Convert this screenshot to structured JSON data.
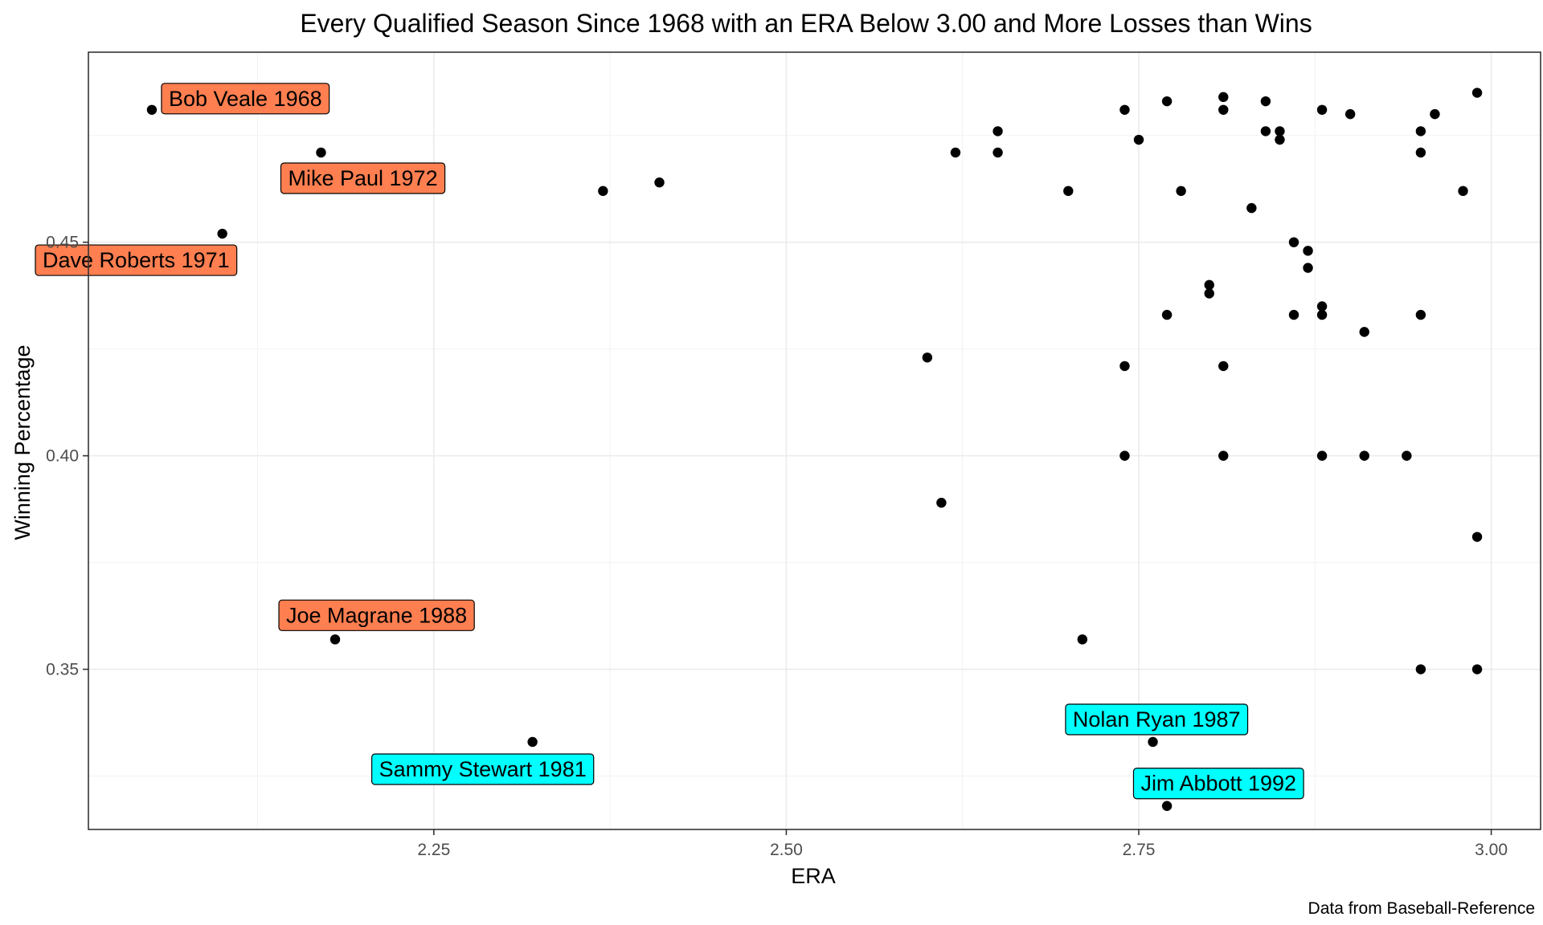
{
  "chart_data": {
    "type": "scatter",
    "title": "Every Qualified Season Since 1968 with an ERA Below 3.00 and More Losses than Wins",
    "xlabel": "ERA",
    "ylabel": "Winning Percentage",
    "caption": "Data from Baseball-Reference",
    "xlim": [
      2.005,
      3.035
    ],
    "ylim": [
      0.3125,
      0.4945
    ],
    "x_ticks": [
      2.25,
      2.5,
      2.75,
      3.0
    ],
    "x_tick_labels": [
      "2.25",
      "2.50",
      "2.75",
      "3.00"
    ],
    "y_ticks": [
      0.35,
      0.4,
      0.45
    ],
    "y_tick_labels": [
      "0.35",
      "0.40",
      "0.45"
    ],
    "grid": true,
    "legend": "none",
    "colors": {
      "orange_label": "#FF7F50",
      "cyan_label": "#00FFFF",
      "point": "#000000"
    },
    "labels": [
      {
        "text": "Bob Veale 1968",
        "x": 2.05,
        "y": 0.481,
        "color": "orange_label"
      },
      {
        "text": "Mike Paul 1972",
        "x": 2.17,
        "y": 0.471,
        "color": "orange_label"
      },
      {
        "text": "Dave Roberts 1971",
        "x": 2.1,
        "y": 0.452,
        "color": "orange_label"
      },
      {
        "text": "Joe Magrane 1988",
        "x": 2.18,
        "y": 0.357,
        "color": "orange_label"
      },
      {
        "text": "Sammy Stewart 1981",
        "x": 2.32,
        "y": 0.333,
        "color": "cyan_label"
      },
      {
        "text": "Nolan Ryan 1987",
        "x": 2.76,
        "y": 0.333,
        "color": "cyan_label"
      },
      {
        "text": "Jim Abbott 1992",
        "x": 2.77,
        "y": 0.318,
        "color": "cyan_label"
      }
    ],
    "points": [
      [
        2.05,
        0.481
      ],
      [
        2.17,
        0.471
      ],
      [
        2.1,
        0.452
      ],
      [
        2.18,
        0.357
      ],
      [
        2.32,
        0.333
      ],
      [
        2.37,
        0.462
      ],
      [
        2.41,
        0.464
      ],
      [
        2.6,
        0.423
      ],
      [
        2.61,
        0.389
      ],
      [
        2.62,
        0.471
      ],
      [
        2.65,
        0.476
      ],
      [
        2.65,
        0.471
      ],
      [
        2.7,
        0.462
      ],
      [
        2.71,
        0.357
      ],
      [
        2.74,
        0.481
      ],
      [
        2.74,
        0.421
      ],
      [
        2.74,
        0.4
      ],
      [
        2.75,
        0.474
      ],
      [
        2.76,
        0.333
      ],
      [
        2.77,
        0.483
      ],
      [
        2.77,
        0.433
      ],
      [
        2.77,
        0.318
      ],
      [
        2.78,
        0.462
      ],
      [
        2.8,
        0.44
      ],
      [
        2.8,
        0.438
      ],
      [
        2.81,
        0.484
      ],
      [
        2.81,
        0.481
      ],
      [
        2.81,
        0.421
      ],
      [
        2.81,
        0.4
      ],
      [
        2.83,
        0.458
      ],
      [
        2.84,
        0.483
      ],
      [
        2.84,
        0.476
      ],
      [
        2.85,
        0.476
      ],
      [
        2.85,
        0.474
      ],
      [
        2.86,
        0.45
      ],
      [
        2.86,
        0.433
      ],
      [
        2.87,
        0.448
      ],
      [
        2.87,
        0.444
      ],
      [
        2.88,
        0.481
      ],
      [
        2.88,
        0.435
      ],
      [
        2.88,
        0.433
      ],
      [
        2.88,
        0.4
      ],
      [
        2.9,
        0.48
      ],
      [
        2.91,
        0.429
      ],
      [
        2.91,
        0.4
      ],
      [
        2.94,
        0.4
      ],
      [
        2.95,
        0.476
      ],
      [
        2.95,
        0.471
      ],
      [
        2.95,
        0.433
      ],
      [
        2.95,
        0.35
      ],
      [
        2.96,
        0.48
      ],
      [
        2.98,
        0.462
      ],
      [
        2.99,
        0.485
      ],
      [
        2.99,
        0.381
      ],
      [
        2.99,
        0.35
      ]
    ]
  }
}
